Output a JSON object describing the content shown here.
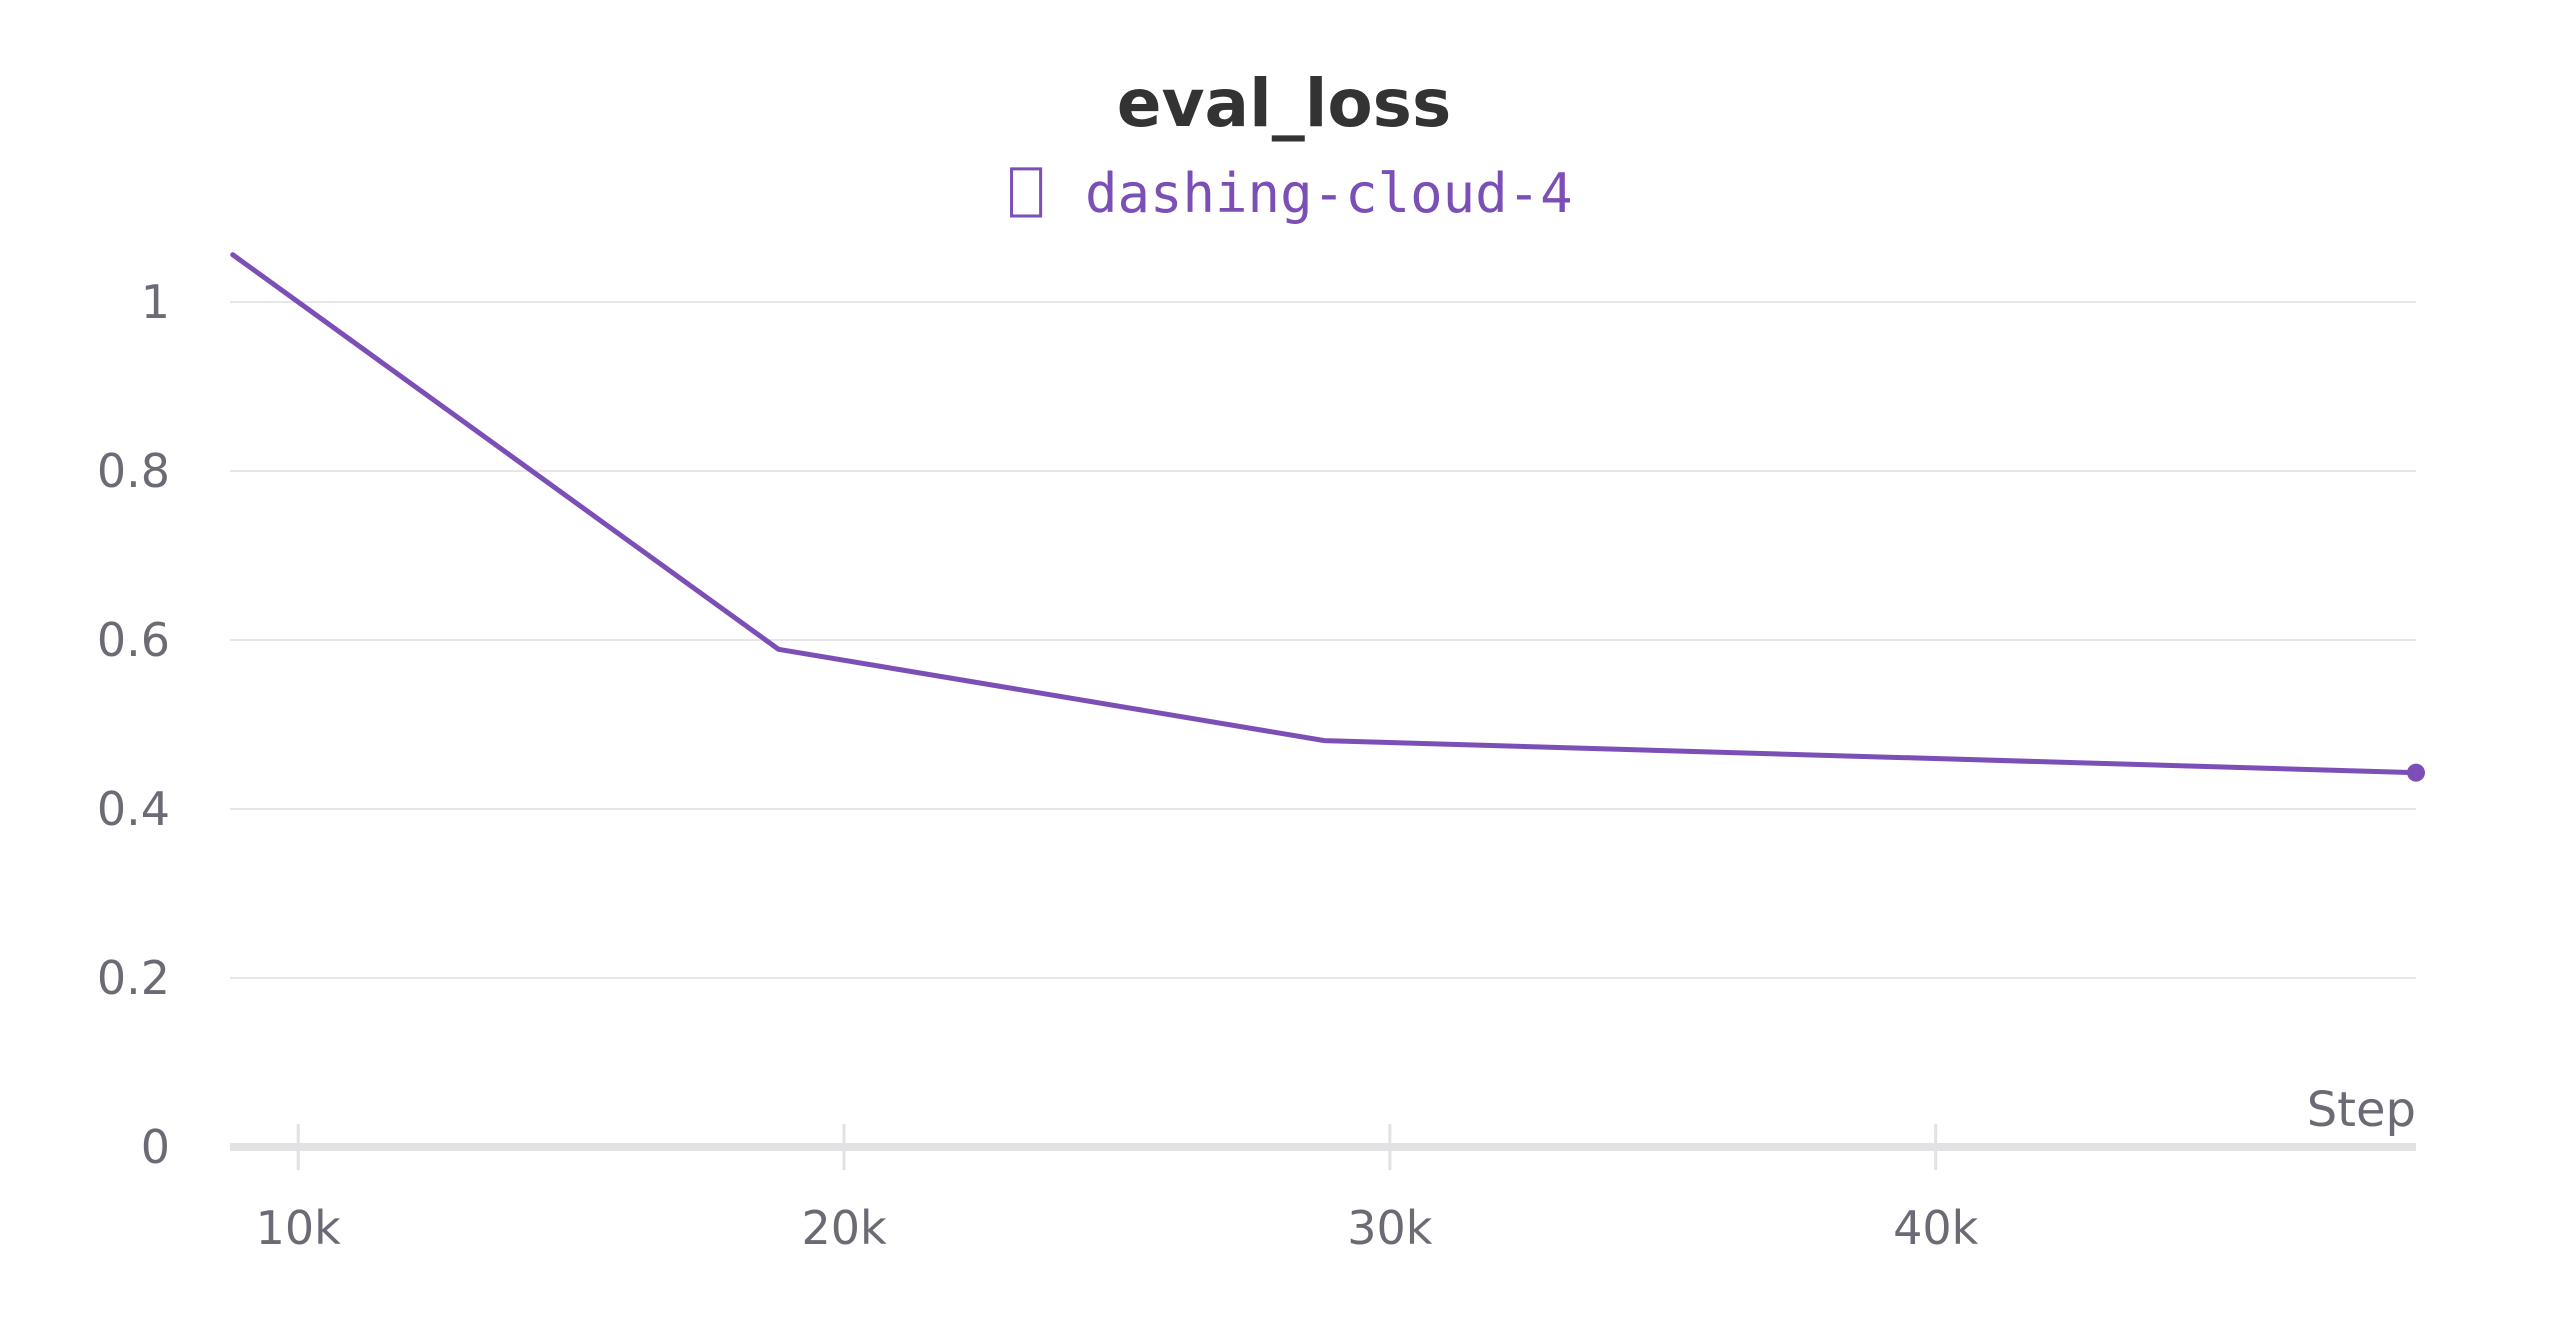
{
  "chart_data": {
    "type": "line",
    "title": "eval_loss",
    "xlabel": "Step",
    "ylabel": "",
    "xlim": [
      8750,
      48800
    ],
    "ylim": [
      0,
      1.05
    ],
    "x_ticks": [
      10000,
      20000,
      30000,
      40000
    ],
    "x_tick_labels": [
      "10k",
      "20k",
      "30k",
      "40k"
    ],
    "y_ticks": [
      0,
      0.2,
      0.4,
      0.6,
      0.8,
      1
    ],
    "y_tick_labels": [
      "0",
      "0.2",
      "0.4",
      "0.6",
      "0.8",
      "1"
    ],
    "grid": true,
    "legend_position": "top-center",
    "series": [
      {
        "name": "dashing-cloud-4",
        "legend_marker": "⎕",
        "color": "#7b4fb6",
        "x": [
          8800,
          18800,
          28800,
          48800
        ],
        "y": [
          1.056,
          0.589,
          0.481,
          0.443
        ]
      }
    ]
  }
}
